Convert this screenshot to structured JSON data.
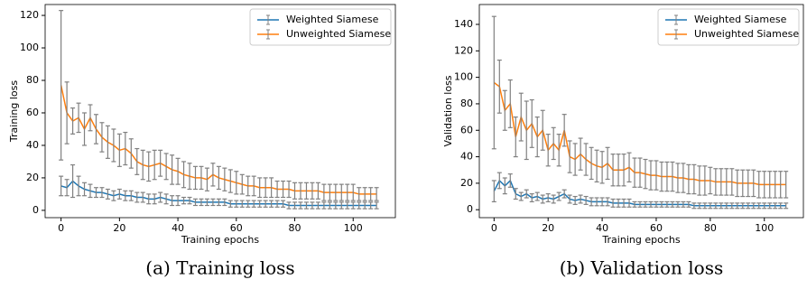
{
  "chart_data": [
    {
      "type": "line",
      "caption": "(a) Training loss",
      "xlabel": "Training epochs",
      "ylabel": "Training loss",
      "x": [
        0,
        2,
        4,
        6,
        8,
        10,
        12,
        14,
        16,
        18,
        20,
        22,
        24,
        26,
        28,
        30,
        32,
        34,
        36,
        38,
        40,
        42,
        44,
        46,
        48,
        50,
        52,
        54,
        56,
        58,
        60,
        62,
        64,
        66,
        68,
        70,
        72,
        74,
        76,
        78,
        80,
        82,
        84,
        86,
        88,
        90,
        92,
        94,
        96,
        98,
        100,
        102,
        104,
        106,
        108
      ],
      "xlim": [
        -5.45,
        114.45
      ],
      "xticks": [
        0,
        20,
        40,
        60,
        80,
        100
      ],
      "ylim": [
        -4.5,
        126.7
      ],
      "yticks": [
        0,
        20,
        40,
        60,
        80,
        100,
        120
      ],
      "legend": "upper right",
      "error_color": "#808080",
      "series": [
        {
          "name": "Weighted Siamese",
          "color": "#1f77b4",
          "values": [
            15,
            14,
            18,
            15,
            13,
            12,
            11,
            11,
            10,
            9,
            10,
            9,
            9,
            8,
            8,
            7,
            7,
            8,
            7,
            6,
            6,
            6,
            6,
            5,
            5,
            5,
            5,
            5,
            5,
            4,
            4,
            4,
            4,
            4,
            4,
            4,
            4,
            4,
            4,
            3,
            3,
            3,
            3,
            3,
            3,
            3,
            3,
            3,
            3,
            3,
            3,
            3,
            3,
            3,
            3
          ],
          "errors": [
            6,
            5,
            10,
            6,
            4,
            4,
            3,
            3,
            3,
            3,
            3,
            3,
            3,
            3,
            3,
            3,
            3,
            3,
            3,
            3,
            3,
            2,
            2,
            2,
            2,
            2,
            2,
            2,
            2,
            2,
            2,
            2,
            2,
            2,
            2,
            2,
            2,
            2,
            2,
            2,
            2,
            2,
            2,
            2,
            2,
            2,
            2,
            2,
            2,
            2,
            2,
            2,
            2,
            2,
            2
          ]
        },
        {
          "name": "Unweighted Siamese",
          "color": "#ff7f0e",
          "values": [
            77,
            60,
            55,
            57,
            50,
            57,
            50,
            45,
            42,
            40,
            37,
            38,
            35,
            30,
            28,
            27,
            28,
            29,
            27,
            25,
            24,
            22,
            21,
            20,
            20,
            19,
            22,
            20,
            19,
            18,
            17,
            16,
            15,
            15,
            14,
            14,
            14,
            13,
            13,
            13,
            12,
            12,
            12,
            12,
            12,
            11,
            11,
            11,
            11,
            11,
            11,
            10,
            10,
            10,
            10
          ],
          "errors": [
            46,
            19,
            8,
            9,
            10,
            8,
            9,
            9,
            10,
            10,
            10,
            10,
            9,
            8,
            9,
            9,
            9,
            8,
            8,
            9,
            8,
            8,
            8,
            7,
            7,
            7,
            7,
            7,
            7,
            7,
            7,
            6,
            6,
            6,
            6,
            6,
            6,
            5,
            5,
            5,
            5,
            5,
            5,
            5,
            5,
            5,
            5,
            5,
            5,
            5,
            5,
            4,
            4,
            4,
            4
          ]
        }
      ]
    },
    {
      "type": "line",
      "caption": "(b) Validation loss",
      "xlabel": "Training epochs",
      "ylabel": "Validation loss",
      "x": [
        0,
        2,
        4,
        6,
        8,
        10,
        12,
        14,
        16,
        18,
        20,
        22,
        24,
        26,
        28,
        30,
        32,
        34,
        36,
        38,
        40,
        42,
        44,
        46,
        48,
        50,
        52,
        54,
        56,
        58,
        60,
        62,
        64,
        66,
        68,
        70,
        72,
        74,
        76,
        78,
        80,
        82,
        84,
        86,
        88,
        90,
        92,
        94,
        96,
        98,
        100,
        102,
        104,
        106,
        108
      ],
      "xlim": [
        -5.45,
        114.45
      ],
      "xticks": [
        0,
        20,
        40,
        60,
        80,
        100
      ],
      "ylim": [
        -6,
        155
      ],
      "yticks": [
        0,
        20,
        40,
        60,
        80,
        100,
        120,
        140
      ],
      "legend": "upper right",
      "error_color": "#808080",
      "series": [
        {
          "name": "Weighted Siamese",
          "color": "#1f77b4",
          "values": [
            14,
            22,
            18,
            22,
            12,
            10,
            12,
            9,
            10,
            8,
            9,
            8,
            10,
            12,
            8,
            7,
            8,
            7,
            6,
            6,
            6,
            6,
            5,
            5,
            5,
            5,
            4,
            4,
            4,
            4,
            4,
            4,
            4,
            4,
            4,
            4,
            4,
            3,
            3,
            3,
            3,
            3,
            3,
            3,
            3,
            3,
            3,
            3,
            3,
            3,
            3,
            3,
            3,
            3,
            3
          ],
          "errors": [
            8,
            6,
            6,
            5,
            4,
            3,
            3,
            3,
            3,
            3,
            3,
            3,
            3,
            3,
            3,
            3,
            3,
            3,
            3,
            3,
            3,
            3,
            3,
            3,
            3,
            3,
            2,
            2,
            2,
            2,
            2,
            2,
            2,
            2,
            2,
            2,
            2,
            2,
            2,
            2,
            2,
            2,
            2,
            2,
            2,
            2,
            2,
            2,
            2,
            2,
            2,
            2,
            2,
            2,
            2
          ]
        },
        {
          "name": "Unweighted Siamese",
          "color": "#ff7f0e",
          "values": [
            96,
            93,
            75,
            80,
            55,
            70,
            60,
            65,
            55,
            60,
            45,
            50,
            45,
            60,
            40,
            38,
            42,
            38,
            35,
            33,
            32,
            35,
            30,
            30,
            30,
            32,
            28,
            28,
            27,
            26,
            26,
            25,
            25,
            25,
            24,
            24,
            23,
            23,
            22,
            22,
            22,
            21,
            21,
            21,
            21,
            20,
            20,
            20,
            20,
            19,
            19,
            19,
            19,
            19,
            19
          ],
          "errors": [
            50,
            20,
            15,
            18,
            15,
            18,
            22,
            18,
            15,
            15,
            12,
            12,
            12,
            12,
            12,
            12,
            12,
            12,
            12,
            12,
            12,
            12,
            12,
            12,
            12,
            11,
            11,
            11,
            11,
            11,
            11,
            11,
            11,
            11,
            11,
            11,
            11,
            11,
            11,
            11,
            10,
            10,
            10,
            10,
            10,
            10,
            10,
            10,
            10,
            10,
            10,
            10,
            10,
            10,
            10
          ]
        }
      ]
    }
  ]
}
